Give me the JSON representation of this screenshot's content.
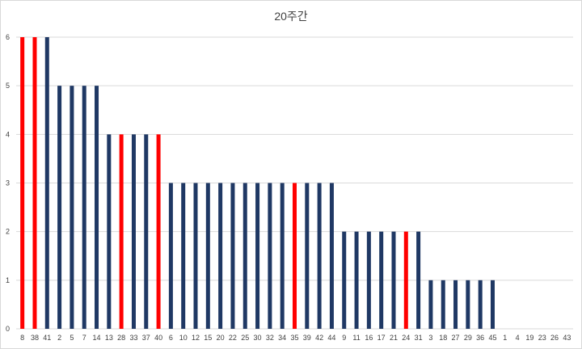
{
  "chart_data": {
    "type": "bar",
    "title": "20주간",
    "xlabel": "",
    "ylabel": "",
    "ylim": [
      0,
      6
    ],
    "yticks": [
      0,
      1,
      2,
      3,
      4,
      5,
      6
    ],
    "grid": true,
    "legend": "none",
    "colors": {
      "default": "#1f3864",
      "highlight": "#ff0000",
      "grid": "#d9d9d9"
    },
    "categories": [
      "8",
      "38",
      "41",
      "2",
      "5",
      "7",
      "14",
      "13",
      "28",
      "33",
      "37",
      "40",
      "6",
      "10",
      "12",
      "15",
      "20",
      "22",
      "25",
      "30",
      "32",
      "34",
      "35",
      "39",
      "42",
      "44",
      "9",
      "11",
      "16",
      "17",
      "21",
      "24",
      "31",
      "3",
      "18",
      "27",
      "29",
      "36",
      "45",
      "1",
      "4",
      "19",
      "23",
      "26",
      "43"
    ],
    "values": [
      6,
      6,
      6,
      5,
      5,
      5,
      5,
      4,
      4,
      4,
      4,
      4,
      3,
      3,
      3,
      3,
      3,
      3,
      3,
      3,
      3,
      3,
      3,
      3,
      3,
      3,
      2,
      2,
      2,
      2,
      2,
      2,
      2,
      1,
      1,
      1,
      1,
      1,
      1,
      0,
      0,
      0,
      0,
      0,
      0
    ],
    "highlighted": [
      "8",
      "38",
      "28",
      "40",
      "35",
      "24"
    ]
  }
}
